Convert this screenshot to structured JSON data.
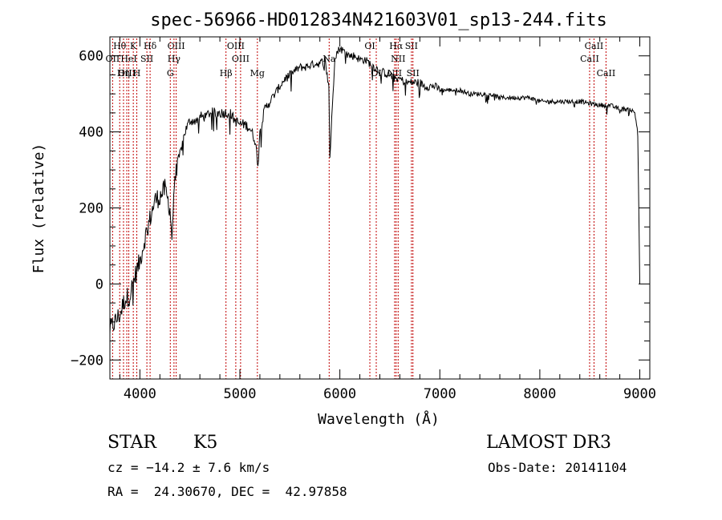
{
  "chart_data": {
    "type": "line",
    "title": "spec-56966-HD012834N421603V01_sp13-244.fits",
    "xlabel": "Wavelength (Å)",
    "ylabel": "Flux (relative)",
    "xlim": [
      3700,
      9100
    ],
    "ylim": [
      -250,
      650
    ],
    "x_ticks": [
      4000,
      5000,
      6000,
      7000,
      8000,
      9000
    ],
    "y_ticks": [
      -200,
      0,
      200,
      400,
      600
    ],
    "grid": false,
    "series_color": "#000000",
    "line_color": "#c00000",
    "series": [
      {
        "x": [
          3700,
          3750,
          3800,
          3850,
          3900,
          3950,
          4000,
          4050,
          4100,
          4150,
          4200,
          4250,
          4300,
          4320,
          4350,
          4400,
          4450,
          4500,
          4550,
          4600,
          4650,
          4700,
          4750,
          4800,
          4850,
          4900,
          4950,
          5000,
          5050,
          5100,
          5150,
          5180,
          5200,
          5250,
          5300,
          5350,
          5400,
          5450,
          5500,
          5550,
          5600,
          5650,
          5700,
          5750,
          5800,
          5850,
          5890,
          5900,
          5950,
          6000,
          6050,
          6100,
          6150,
          6200,
          6250,
          6300,
          6350,
          6400,
          6450,
          6500,
          6550,
          6600,
          6650,
          6700,
          6750,
          6800,
          6850,
          6900,
          6950,
          7000,
          7100,
          7200,
          7300,
          7400,
          7500,
          7600,
          7700,
          7800,
          7900,
          8000,
          8100,
          8200,
          8300,
          8400,
          8500,
          8600,
          8700,
          8800,
          8900,
          8950,
          8980,
          9000
        ],
        "y": [
          -120,
          -100,
          -80,
          -40,
          -30,
          20,
          60,
          120,
          170,
          220,
          230,
          250,
          200,
          120,
          290,
          340,
          400,
          430,
          430,
          440,
          440,
          450,
          450,
          450,
          450,
          450,
          430,
          420,
          420,
          410,
          380,
          320,
          400,
          460,
          480,
          500,
          520,
          540,
          550,
          560,
          570,
          570,
          575,
          580,
          580,
          590,
          520,
          330,
          600,
          620,
          610,
          600,
          600,
          590,
          590,
          580,
          570,
          560,
          555,
          550,
          540,
          540,
          530,
          530,
          530,
          530,
          520,
          520,
          520,
          510,
          510,
          510,
          500,
          500,
          500,
          490,
          490,
          490,
          490,
          480,
          480,
          480,
          480,
          480,
          475,
          470,
          470,
          460,
          460,
          450,
          400,
          0
        ]
      }
    ],
    "lines": [
      {
        "label": "Hθ",
        "x": 3798,
        "row": 0
      },
      {
        "label": "OII",
        "x": 3727,
        "row": 1
      },
      {
        "label": "OIII",
        "x": 3869,
        "row": 2
      },
      {
        "label": "HeI",
        "x": 3889,
        "row": 1
      },
      {
        "label": "Hη",
        "x": 3836,
        "row": 2
      },
      {
        "label": "K",
        "x": 3934,
        "row": 0
      },
      {
        "label": "H",
        "x": 3969,
        "row": 2
      },
      {
        "label": "SII",
        "x": 4070,
        "row": 1
      },
      {
        "label": "Hδ",
        "x": 4102,
        "row": 0
      },
      {
        "label": "OIII",
        "x": 4363,
        "row": 0
      },
      {
        "label": "Hγ",
        "x": 4341,
        "row": 1
      },
      {
        "label": "G",
        "x": 4304,
        "row": 2
      },
      {
        "label": "Hβ",
        "x": 4861,
        "row": 2
      },
      {
        "label": "OIII",
        "x": 4959,
        "row": 0
      },
      {
        "label": "OIII",
        "x": 5007,
        "row": 1
      },
      {
        "label": "Mg",
        "x": 5175,
        "row": 2
      },
      {
        "label": "Na",
        "x": 5893,
        "row": 1
      },
      {
        "label": "OI",
        "x": 6300,
        "row": 0
      },
      {
        "label": "OI",
        "x": 6364,
        "row": 2
      },
      {
        "label": "NII",
        "x": 6548,
        "row": 2
      },
      {
        "label": "Hα",
        "x": 6563,
        "row": 0
      },
      {
        "label": "NII",
        "x": 6583,
        "row": 1
      },
      {
        "label": "SII",
        "x": 6716,
        "row": 0
      },
      {
        "label": "SII",
        "x": 6731,
        "row": 2
      },
      {
        "label": "CaII",
        "x": 8498,
        "row": 1
      },
      {
        "label": "CaII",
        "x": 8542,
        "row": 0
      },
      {
        "label": "CaII",
        "x": 8662,
        "row": 2
      }
    ]
  },
  "info": {
    "object_class": "STAR",
    "subclass": "K5",
    "survey": "LAMOST DR3",
    "cz": "cz = −14.2 ± 7.6 km/s",
    "obs_date": "Obs-Date: 20141104",
    "coords": "RA =  24.30670, DEC =  42.97858"
  }
}
